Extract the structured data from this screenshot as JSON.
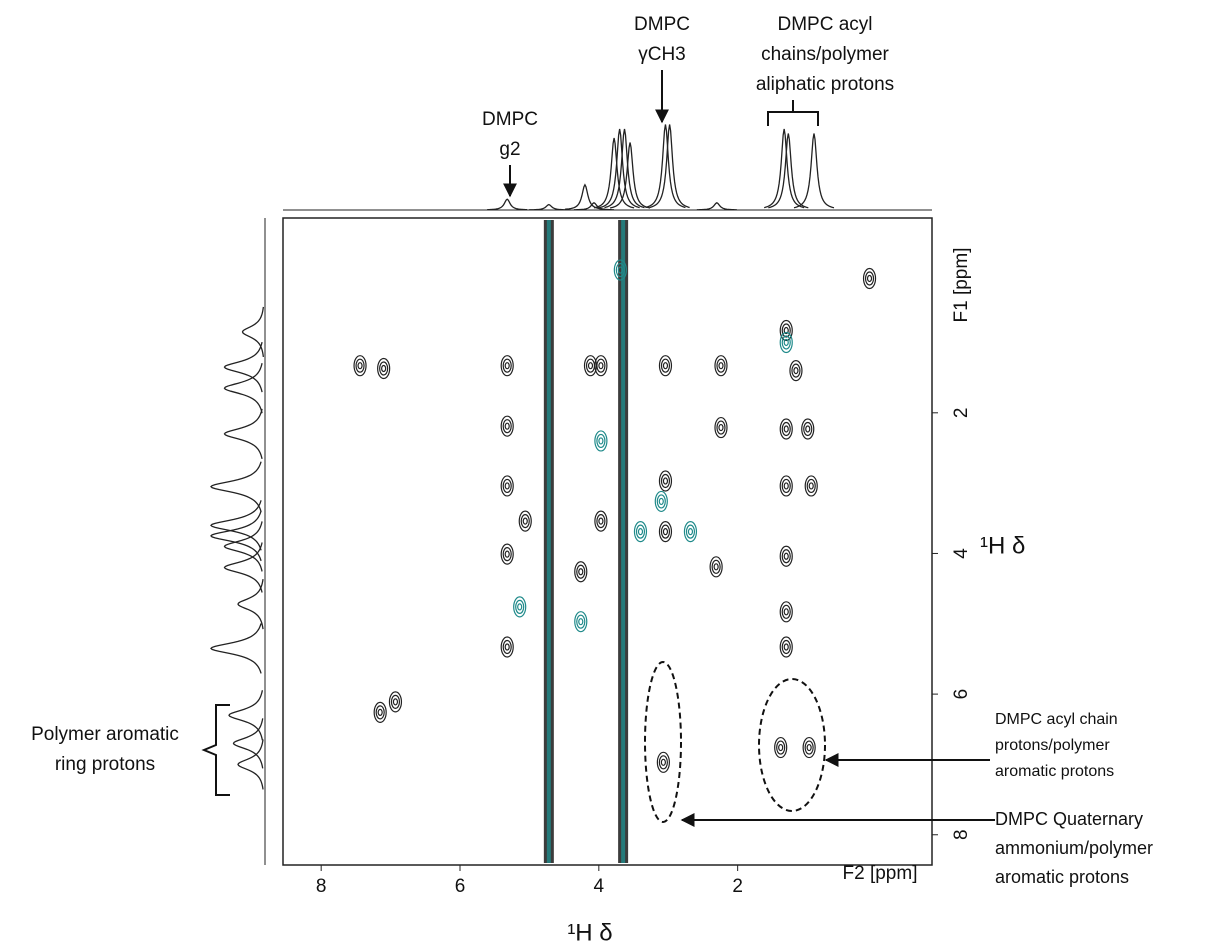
{
  "chart_data": {
    "type": "contour",
    "x_label": "¹H δ",
    "y_label": "¹H δ",
    "x_unit_label": "F2 [ppm]",
    "y_unit_label": "F1 [ppm]",
    "xlim": [
      8.55,
      -0.8
    ],
    "ylim": [
      -0.77,
      8.43
    ],
    "xticks": [
      8,
      6,
      4,
      2
    ],
    "yticks": [
      2,
      4,
      6,
      8
    ],
    "ridges": {
      "color": "#1a1a1a",
      "overlay_color": "#1f8a8a",
      "x": [
        4.72,
        3.65
      ]
    },
    "contours": [
      {
        "color": "#222222",
        "x": [
          7.1,
          7.44,
          5.32,
          5.32,
          5.32,
          5.32,
          5.32,
          4.12,
          3.97,
          3.04,
          2.24,
          2.24,
          1.16,
          1.3,
          1.3,
          0.99,
          1.3,
          0.94,
          0.1,
          3.04,
          3.04,
          4.26,
          3.97,
          1.3,
          1.3,
          1.3,
          7.15,
          6.93,
          3.07,
          1.38,
          0.97,
          5.06,
          2.31
        ],
        "y": [
          1.37,
          1.33,
          1.33,
          2.19,
          3.04,
          4.01,
          5.33,
          1.33,
          1.33,
          1.33,
          1.33,
          2.21,
          1.4,
          0.83,
          2.23,
          2.23,
          3.04,
          3.04,
          0.09,
          2.97,
          3.69,
          4.26,
          3.54,
          4.04,
          4.83,
          5.33,
          6.26,
          6.11,
          6.97,
          6.76,
          6.76,
          3.54,
          4.19
        ]
      },
      {
        "color": "#1f8a8a",
        "x": [
          3.69,
          3.97,
          3.1,
          3.4,
          4.26,
          5.14,
          2.68,
          1.3
        ],
        "y": [
          -0.03,
          2.4,
          3.26,
          3.69,
          4.97,
          4.76,
          3.69,
          1.0
        ]
      }
    ],
    "f2_projection": {
      "x": [
        5.32,
        4.72,
        4.2,
        4.07,
        3.78,
        3.7,
        3.63,
        3.55,
        3.04,
        2.98,
        2.3,
        1.33,
        1.27,
        0.9
      ],
      "heights": [
        12,
        6,
        28,
        8,
        80,
        90,
        90,
        75,
        95,
        95,
        8,
        90,
        85,
        85
      ]
    },
    "f1_projection": {
      "y": [
        0.85,
        1.35,
        1.65,
        2.3,
        3.05,
        3.6,
        3.75,
        3.9,
        4.2,
        4.72,
        5.35,
        6.3,
        6.7,
        7.0
      ],
      "heights": [
        25,
        45,
        45,
        45,
        60,
        60,
        60,
        45,
        45,
        30,
        60,
        40,
        35,
        30
      ]
    },
    "annotations": [
      {
        "lines": [
          "DMPC",
          "g2"
        ]
      },
      {
        "lines": [
          "DMPC",
          "γCH3"
        ]
      },
      {
        "lines": [
          "DMPC acyl",
          "chains/polymer",
          "aliphatic protons"
        ]
      },
      {
        "lines": [
          "Polymer aromatic",
          "ring protons"
        ]
      },
      {
        "lines": [
          "DMPC acyl chain",
          "protons/polymer",
          "aromatic protons"
        ]
      },
      {
        "lines": [
          "DMPC Quaternary",
          "ammonium/polymer",
          "aromatic protons"
        ]
      }
    ]
  }
}
